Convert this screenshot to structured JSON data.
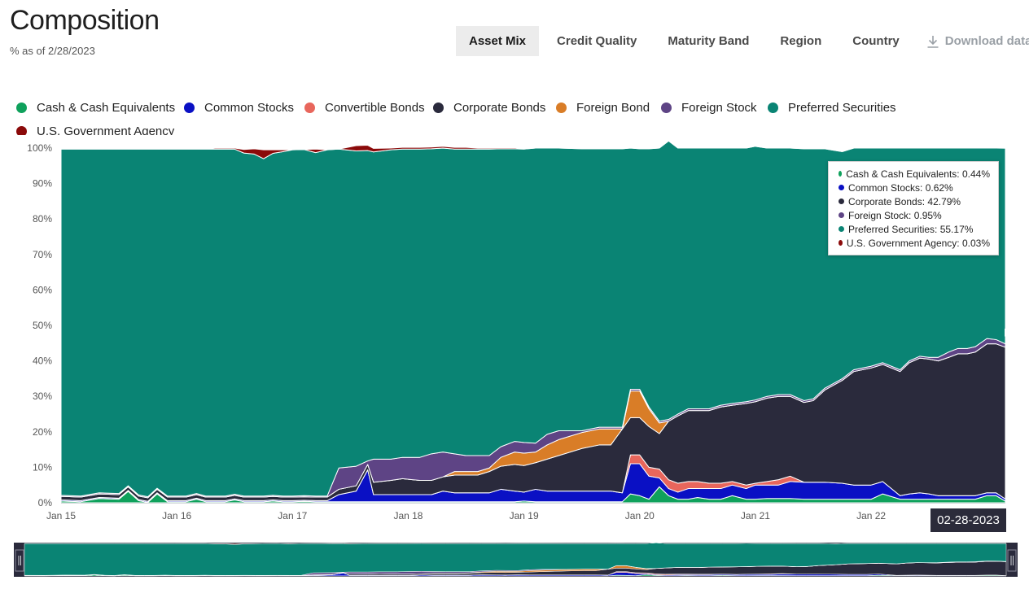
{
  "header": {
    "title": "Composition",
    "subtitle": "% as of 2/28/2023"
  },
  "tabs": [
    {
      "label": "Asset Mix",
      "active": true
    },
    {
      "label": "Credit Quality",
      "active": false
    },
    {
      "label": "Maturity Band",
      "active": false
    },
    {
      "label": "Region",
      "active": false
    },
    {
      "label": "Country",
      "active": false
    }
  ],
  "download": {
    "label": "Download data",
    "icon": "download-icon"
  },
  "tooltip": {
    "rows": [
      {
        "text": "Cash & Cash Equivalents: 0.44%",
        "color": "#0fa15c"
      },
      {
        "text": "Common Stocks: 0.62%",
        "color": "#0a10c4"
      },
      {
        "text": "Corporate Bonds: 42.79%",
        "color": "#2a2a3c"
      },
      {
        "text": "Foreign Stock: 0.95%",
        "color": "#5e4485"
      },
      {
        "text": "Preferred Securities: 55.17%",
        "color": "#0a8474"
      },
      {
        "text": "U.S. Government Agency: 0.03%",
        "color": "#8b0a0a"
      }
    ]
  },
  "date_badge": "02-28-2023",
  "chart_data": {
    "type": "area",
    "stacked": true,
    "x": [
      2015.0,
      2015.17,
      2015.33,
      2015.5,
      2015.58,
      2015.67,
      2015.75,
      2015.83,
      2015.92,
      2016.0,
      2016.08,
      2016.17,
      2016.25,
      2016.33,
      2016.42,
      2016.5,
      2016.58,
      2016.67,
      2016.75,
      2016.83,
      2016.92,
      2017.0,
      2017.1,
      2017.2,
      2017.3,
      2017.4,
      2017.55,
      2017.65,
      2017.7,
      2017.85,
      2017.95,
      2018.1,
      2018.2,
      2018.3,
      2018.4,
      2018.5,
      2018.6,
      2018.7,
      2018.8,
      2018.92,
      2019.0,
      2019.1,
      2019.2,
      2019.3,
      2019.5,
      2019.65,
      2019.75,
      2019.85,
      2019.92,
      2020.0,
      2020.08,
      2020.17,
      2020.25,
      2020.33,
      2020.42,
      2020.5,
      2020.6,
      2020.7,
      2020.8,
      2020.92,
      2021.0,
      2021.1,
      2021.2,
      2021.3,
      2021.42,
      2021.5,
      2021.6,
      2021.75,
      2021.85,
      2022.0,
      2022.1,
      2022.25,
      2022.33,
      2022.42,
      2022.5,
      2022.58,
      2022.67,
      2022.75,
      2022.83,
      2022.9,
      2023.0,
      2023.08,
      2023.16
    ],
    "series": [
      {
        "name": "Cash & Cash Equivalents",
        "color": "#0fa15c",
        "values": [
          0.5,
          0.3,
          1.2,
          1.0,
          3.2,
          0.6,
          0.1,
          2.5,
          0.3,
          0.3,
          0.3,
          1.0,
          0.3,
          0.3,
          0.3,
          0.8,
          0.3,
          0.3,
          0.3,
          0.5,
          0.3,
          0.3,
          0.4,
          0.3,
          0.3,
          0.3,
          0.3,
          0.3,
          0.3,
          0.3,
          0.3,
          0.3,
          0.3,
          0.3,
          0.3,
          0.3,
          0.3,
          0.3,
          0.3,
          0.3,
          0.5,
          0.3,
          0.3,
          0.3,
          0.3,
          0.3,
          0.3,
          0.3,
          2.5,
          2.0,
          1.0,
          4.5,
          2.0,
          1.0,
          1.0,
          1.5,
          1.0,
          1.0,
          2.0,
          1.0,
          1.0,
          1.2,
          1.2,
          1.2,
          1.0,
          1.0,
          1.0,
          1.0,
          1.0,
          1.0,
          2.5,
          1.0,
          1.0,
          1.0,
          1.0,
          1.0,
          1.0,
          1.0,
          1.0,
          1.0,
          2.0,
          2.0,
          0.44
        ]
      },
      {
        "name": "Common Stocks",
        "color": "#0a10c4",
        "values": [
          0.3,
          0.3,
          0.3,
          0.3,
          0.3,
          0.3,
          0.3,
          0.3,
          0.3,
          0.3,
          0.3,
          0.3,
          0.3,
          0.3,
          0.3,
          0.3,
          0.3,
          0.3,
          0.3,
          0.3,
          0.3,
          0.3,
          0.3,
          0.3,
          0.3,
          2.0,
          3.0,
          9.0,
          2.0,
          2.0,
          2.0,
          2.0,
          2.0,
          3.0,
          2.5,
          2.5,
          2.5,
          2.5,
          3.5,
          3.0,
          2.5,
          3.5,
          3.0,
          3.0,
          3.0,
          3.0,
          3.0,
          2.5,
          8.5,
          9.0,
          6.5,
          2.5,
          2.0,
          2.0,
          3.0,
          2.5,
          3.0,
          3.0,
          3.0,
          3.0,
          4.0,
          3.8,
          3.8,
          4.8,
          4.8,
          4.8,
          4.8,
          4.5,
          4.0,
          4.0,
          3.5,
          1.0,
          1.5,
          1.8,
          1.5,
          1.0,
          1.0,
          1.0,
          1.0,
          1.0,
          0.8,
          0.8,
          0.62
        ]
      },
      {
        "name": "Convertible Bonds",
        "color": "#e8665c",
        "values": [
          0,
          0,
          0,
          0,
          0,
          0,
          0,
          0,
          0,
          0,
          0,
          0,
          0,
          0,
          0,
          0,
          0,
          0,
          0,
          0,
          0,
          0,
          0,
          0,
          0,
          0,
          0,
          0,
          0,
          0,
          0,
          0,
          0,
          0,
          0,
          0,
          0,
          0,
          0,
          0,
          0,
          0,
          0,
          0,
          0,
          0,
          0,
          0,
          2.5,
          2.5,
          2.5,
          2.5,
          2.5,
          2.5,
          2.0,
          2.0,
          1.5,
          1.5,
          1.0,
          1.0,
          0.5,
          1.0,
          1.5,
          1.5,
          0,
          0,
          0,
          0,
          0,
          0,
          0,
          0,
          0,
          0,
          0,
          0,
          0,
          0,
          0,
          0,
          0,
          0,
          0
        ]
      },
      {
        "name": "Corporate Bonds",
        "color": "#2a2a3c",
        "values": [
          1.0,
          1.0,
          1.0,
          1.0,
          1.0,
          1.0,
          1.0,
          1.0,
          1.0,
          1.0,
          1.0,
          1.0,
          1.0,
          1.0,
          1.0,
          1.0,
          1.0,
          1.0,
          1.0,
          1.0,
          1.0,
          1.0,
          1.0,
          1.0,
          1.0,
          1.5,
          1.5,
          1.5,
          3.5,
          4.0,
          4.5,
          4.0,
          4.0,
          4.0,
          5.0,
          5.0,
          5.0,
          6.0,
          6.5,
          7.5,
          7.5,
          7.5,
          9.0,
          10.0,
          12.0,
          13.0,
          13.0,
          18.0,
          10.5,
          10.5,
          11.5,
          10.0,
          16.5,
          19.0,
          20.0,
          20.0,
          20.5,
          21.5,
          21.5,
          23.0,
          23.0,
          23.5,
          23.5,
          22.5,
          22.5,
          23.0,
          26.0,
          29.0,
          32.0,
          33.0,
          33.0,
          35.0,
          37.0,
          38.0,
          38.0,
          38.0,
          39.0,
          40.0,
          40.0,
          40.5,
          42.0,
          42.0,
          42.79
        ]
      },
      {
        "name": "Foreign Bond",
        "color": "#d97d27",
        "values": [
          0,
          0,
          0,
          0,
          0,
          0,
          0,
          0,
          0,
          0,
          0,
          0,
          0,
          0,
          0,
          0,
          0,
          0,
          0,
          0,
          0,
          0,
          0,
          0,
          0,
          0,
          0,
          0,
          0,
          0,
          0,
          0,
          0,
          0,
          1.0,
          1.0,
          1.0,
          1.0,
          2.5,
          3.5,
          3.5,
          3.0,
          4.0,
          4.5,
          4.5,
          4.5,
          4.5,
          0,
          7.5,
          7.5,
          5.0,
          3.0,
          0,
          0,
          0,
          0,
          0,
          0,
          0,
          0,
          0,
          0,
          0,
          0,
          0,
          0,
          0,
          0,
          0,
          0,
          0,
          0,
          0,
          0,
          0,
          0,
          0,
          0,
          0,
          0,
          0,
          0,
          0
        ]
      },
      {
        "name": "Foreign Stock",
        "color": "#5e4485",
        "values": [
          0.3,
          0.3,
          0.3,
          0.3,
          0.3,
          0.3,
          0.3,
          0.3,
          0.3,
          0.3,
          0.3,
          0.3,
          0.3,
          0.3,
          0.3,
          0.3,
          0.3,
          0.3,
          0.3,
          0.3,
          0.3,
          0.3,
          0.3,
          0.3,
          0.3,
          6.0,
          5.5,
          1.0,
          6.5,
          6.0,
          6.0,
          6.5,
          7.5,
          7.0,
          5.0,
          4.5,
          4.5,
          3.5,
          3.0,
          3.0,
          3.0,
          2.5,
          3.0,
          2.5,
          0.5,
          0.5,
          0.5,
          0.5,
          0.5,
          0.5,
          0.5,
          0.5,
          0.5,
          0.5,
          0.5,
          0.5,
          0.5,
          0.5,
          0.5,
          0.5,
          0.5,
          0.5,
          0.5,
          0.5,
          0.5,
          0.5,
          0.5,
          0.5,
          0.5,
          0.5,
          0.5,
          0.5,
          0.5,
          0.5,
          0.5,
          1.0,
          1.5,
          1.5,
          1.5,
          1.5,
          1.5,
          1.2,
          0.95
        ]
      },
      {
        "name": "Preferred Securities",
        "color": "#0a8474",
        "values": [
          97.6,
          97.8,
          96.9,
          97.1,
          94.9,
          97.5,
          98.0,
          95.6,
          97.8,
          97.8,
          97.8,
          97.1,
          97.8,
          97.8,
          97.8,
          97.3,
          96.7,
          96.4,
          95.1,
          96.4,
          97.1,
          97.6,
          97.6,
          96.8,
          97.6,
          89.9,
          88.9,
          87.5,
          86.6,
          87.2,
          86.9,
          86.9,
          86.0,
          85.7,
          85.9,
          86.4,
          86.4,
          86.4,
          84.0,
          82.5,
          82.7,
          83.2,
          80.7,
          79.7,
          79.5,
          78.5,
          78.5,
          78.5,
          68.0,
          67.8,
          72.8,
          77.0,
          78.5,
          75.0,
          73.5,
          73.5,
          73.5,
          72.5,
          72.0,
          71.5,
          71.5,
          70.0,
          69.5,
          69.5,
          71.0,
          70.5,
          67.5,
          64.0,
          62.5,
          61.5,
          60.5,
          62.5,
          60.0,
          58.7,
          59.0,
          59.0,
          57.5,
          56.5,
          56.5,
          56.0,
          53.7,
          54.0,
          55.17
        ]
      },
      {
        "name": "U.S. Government Agency",
        "color": "#8b0a0a",
        "values": [
          0,
          0,
          0,
          0,
          0,
          0,
          0,
          0,
          0,
          0,
          0,
          0,
          0,
          0.3,
          0.3,
          0.3,
          1.0,
          1.5,
          2.5,
          1.0,
          0.5,
          0,
          0,
          1.0,
          0,
          0,
          1.5,
          1.5,
          1.0,
          0.5,
          0.5,
          0.5,
          0.5,
          0.5,
          0.5,
          0.5,
          0.3,
          0.3,
          0.3,
          0.3,
          0,
          0,
          0,
          0,
          0,
          0,
          0,
          0,
          0,
          0,
          0,
          0,
          0,
          0,
          0,
          0,
          0,
          0,
          0,
          0,
          0,
          0,
          0,
          0,
          0,
          0,
          0,
          0,
          0,
          0,
          0,
          0,
          0,
          0,
          0,
          0,
          0,
          0,
          0,
          0,
          0,
          0,
          0.03
        ]
      }
    ],
    "ylim": [
      0,
      100
    ],
    "yticks": [
      "0%",
      "10%",
      "20%",
      "30%",
      "40%",
      "50%",
      "60%",
      "70%",
      "80%",
      "90%",
      "100%"
    ],
    "xtick_values": [
      2015,
      2016,
      2017,
      2018,
      2019,
      2020,
      2021,
      2022
    ],
    "xtick_labels": [
      "Jan 15",
      "Jan 16",
      "Jan 17",
      "Jan 18",
      "Jan 19",
      "Jan 20",
      "Jan 21",
      "Jan 22"
    ],
    "xlim": [
      2015.0,
      2023.16
    ],
    "legend_position": "top",
    "grid": false,
    "navigator": true
  }
}
